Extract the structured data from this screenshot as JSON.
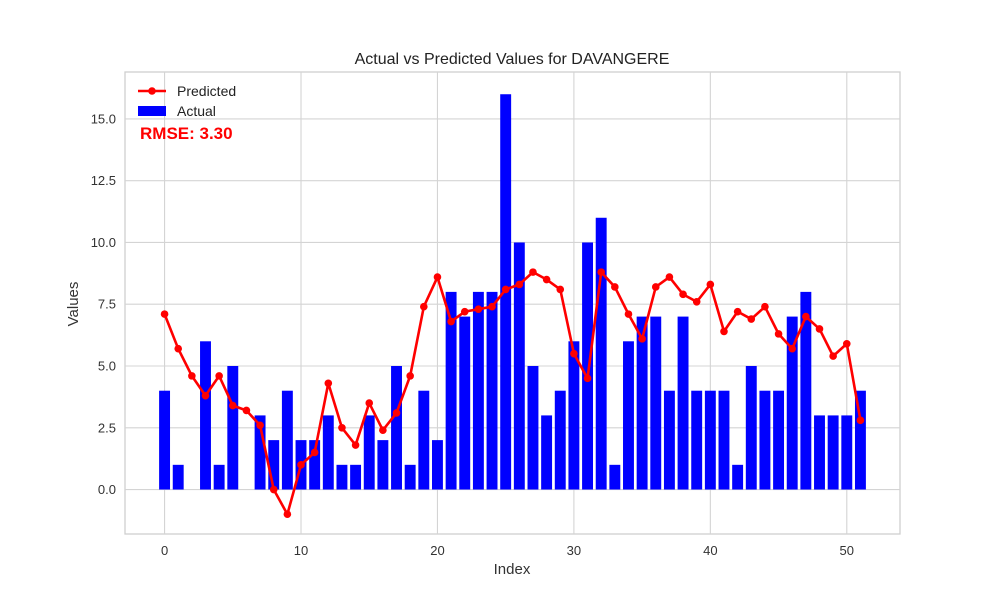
{
  "chart_data": {
    "type": "bar",
    "title": "Actual vs Predicted Values for DAVANGERE",
    "xlabel": "Index",
    "ylabel": "Values",
    "xlim": [
      -2.9,
      53.9
    ],
    "ylim": [
      -1.8,
      16.9
    ],
    "xticks": [
      0,
      10,
      20,
      30,
      40,
      50
    ],
    "xtick_labels": [
      "0",
      "10",
      "20",
      "30",
      "40",
      "50"
    ],
    "yticks": [
      0.0,
      2.5,
      5.0,
      7.5,
      10.0,
      12.5,
      15.0
    ],
    "ytick_labels": [
      "0.0",
      "2.5",
      "5.0",
      "7.5",
      "10.0",
      "12.5",
      "15.0"
    ],
    "grid": true,
    "legend_position": "top-left",
    "series": [
      {
        "name": "Actual",
        "kind": "bar",
        "color": "#0000ff",
        "values": [
          4,
          1,
          0,
          6,
          1,
          5,
          0,
          3,
          2,
          4,
          2,
          2,
          3,
          1,
          1,
          3,
          2,
          5,
          1,
          4,
          2,
          8,
          7,
          8,
          8,
          16,
          10,
          5,
          3,
          4,
          6,
          10,
          11,
          1,
          6,
          7,
          7,
          4,
          7,
          4,
          4,
          4,
          1,
          5,
          4,
          4,
          7,
          8,
          3,
          3,
          3,
          4
        ]
      },
      {
        "name": "Predicted",
        "kind": "line",
        "color": "#ff0000",
        "values": [
          7.1,
          5.7,
          4.6,
          3.8,
          4.6,
          3.4,
          3.2,
          2.6,
          0.0,
          -1.0,
          1.0,
          1.5,
          4.3,
          2.5,
          1.8,
          3.5,
          2.4,
          3.1,
          4.6,
          7.4,
          8.6,
          6.8,
          7.2,
          7.3,
          7.4,
          8.1,
          8.3,
          8.8,
          8.5,
          8.1,
          5.5,
          4.5,
          8.8,
          8.2,
          7.1,
          6.1,
          8.2,
          8.6,
          7.9,
          7.6,
          8.3,
          6.4,
          7.2,
          6.9,
          7.4,
          6.3,
          5.7,
          7.0,
          6.5,
          5.4,
          5.9,
          2.8
        ]
      }
    ],
    "annotation": {
      "text": "RMSE: 3.30",
      "color": "#ff0000"
    }
  }
}
